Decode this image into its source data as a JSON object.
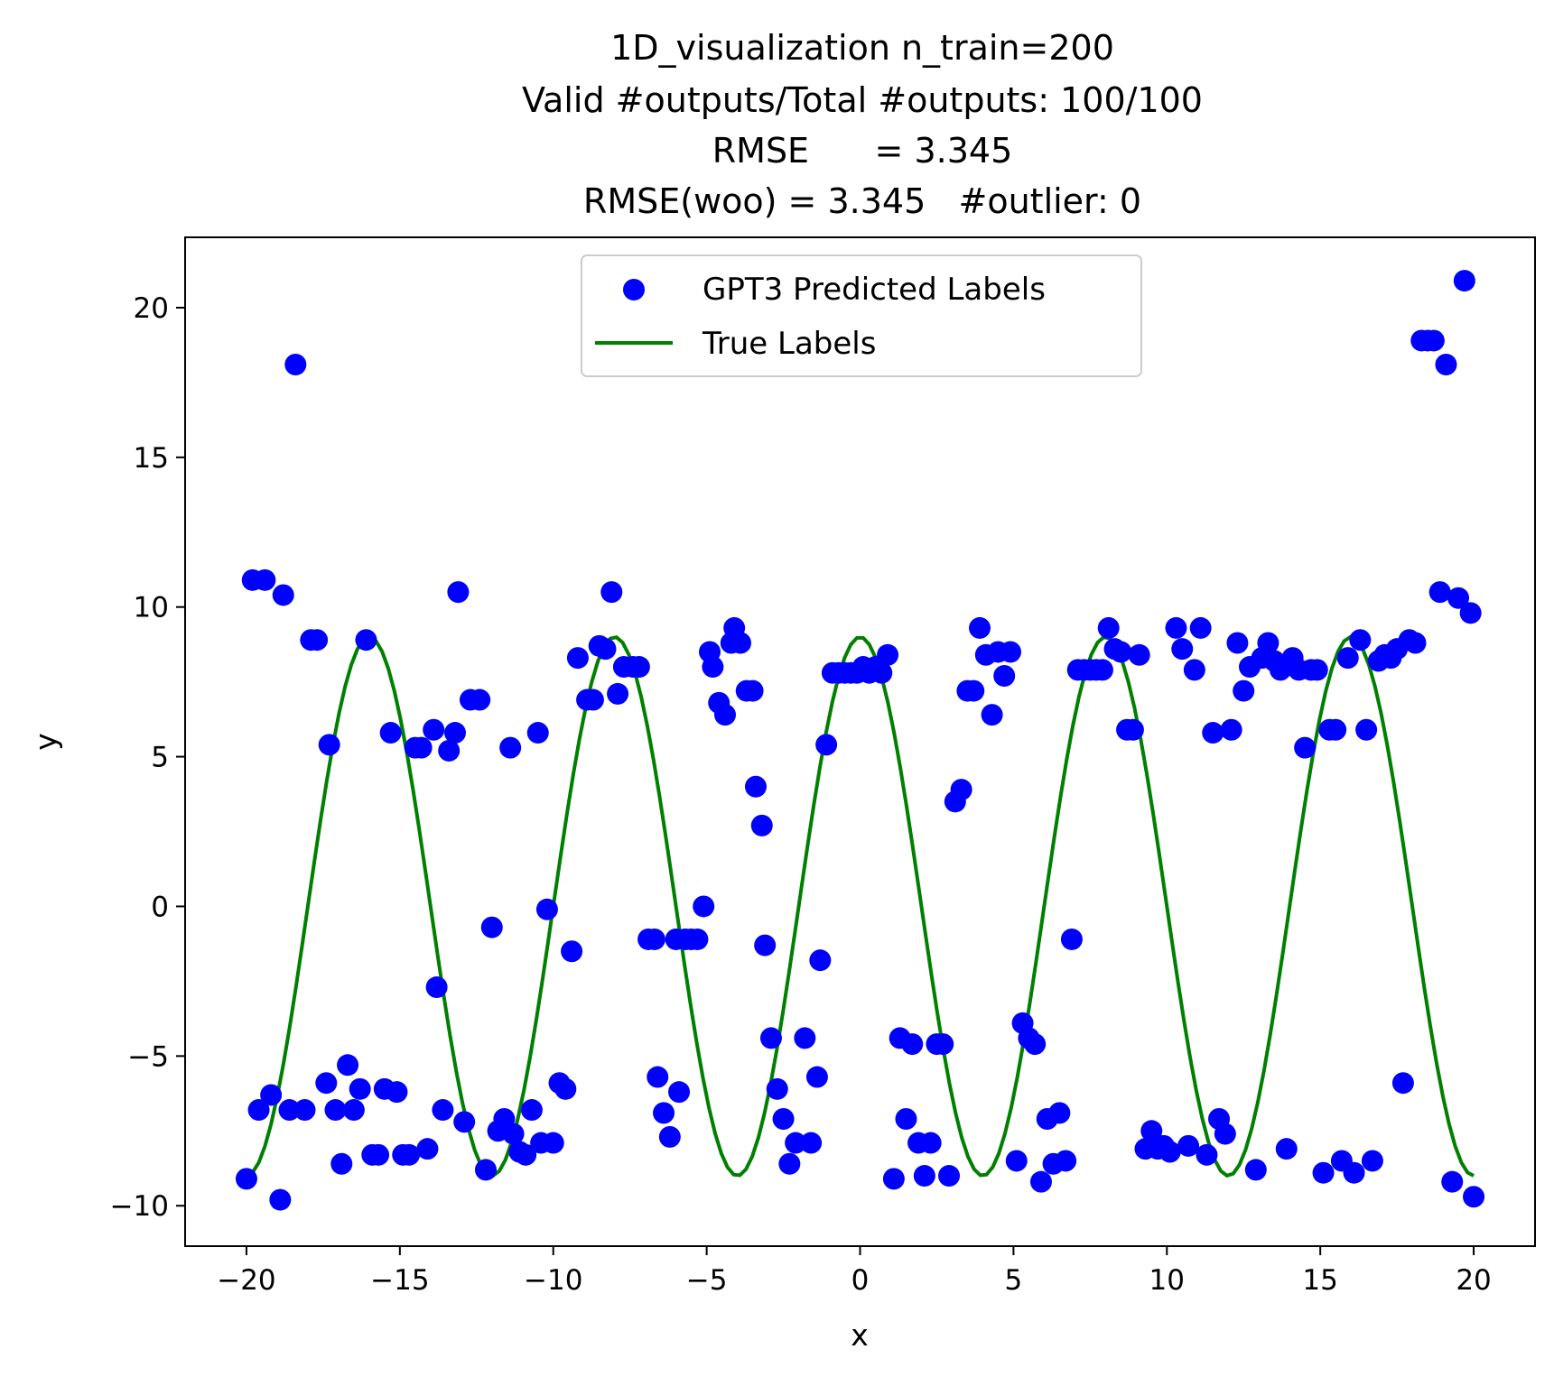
{
  "chart_data": {
    "type": "scatter",
    "title_lines": [
      "1D_visualization  n_train=200",
      "Valid #outputs/Total #outputs: 100/100",
      "RMSE      = 3.345",
      "RMSE(woo) = 3.345   #outlier: 0"
    ],
    "xlabel": "x",
    "ylabel": "y",
    "xlim": [
      -22,
      22
    ],
    "ylim": [
      -11.35,
      22.35
    ],
    "x_ticks": [
      -20,
      -15,
      -10,
      -5,
      0,
      5,
      10,
      15,
      20
    ],
    "x_tick_labels": [
      "−20",
      "−15",
      "−10",
      "−5",
      "0",
      "5",
      "10",
      "15",
      "20"
    ],
    "y_ticks": [
      -10,
      -5,
      0,
      5,
      10,
      15,
      20
    ],
    "y_tick_labels": [
      "−10",
      "−5",
      "0",
      "5",
      "10",
      "15",
      "20"
    ],
    "grid": false,
    "legend_position": "upper center",
    "series": [
      {
        "name": "GPT3 Predicted Labels",
        "kind": "scatter",
        "color": "#0000ff",
        "points": [
          [
            -20.0,
            -9.1
          ],
          [
            -19.8,
            10.9
          ],
          [
            -19.6,
            -6.8
          ],
          [
            -19.4,
            10.9
          ],
          [
            -19.2,
            -6.3
          ],
          [
            -18.9,
            -9.8
          ],
          [
            -18.8,
            10.4
          ],
          [
            -18.6,
            -6.8
          ],
          [
            -18.4,
            18.1
          ],
          [
            -18.1,
            -6.8
          ],
          [
            -17.9,
            8.9
          ],
          [
            -17.7,
            8.9
          ],
          [
            -17.4,
            -5.9
          ],
          [
            -17.3,
            5.4
          ],
          [
            -17.1,
            -6.8
          ],
          [
            -16.9,
            -8.6
          ],
          [
            -16.7,
            -5.3
          ],
          [
            -16.5,
            -6.8
          ],
          [
            -16.3,
            -6.1
          ],
          [
            -16.1,
            8.9
          ],
          [
            -15.9,
            -8.3
          ],
          [
            -15.7,
            -8.3
          ],
          [
            -15.5,
            -6.1
          ],
          [
            -15.3,
            5.8
          ],
          [
            -15.1,
            -6.2
          ],
          [
            -14.9,
            -8.3
          ],
          [
            -14.7,
            -8.3
          ],
          [
            -14.5,
            5.3
          ],
          [
            -14.3,
            5.3
          ],
          [
            -14.1,
            -8.1
          ],
          [
            -13.9,
            5.9
          ],
          [
            -13.8,
            -2.7
          ],
          [
            -13.6,
            -6.8
          ],
          [
            -13.4,
            5.2
          ],
          [
            -13.2,
            5.8
          ],
          [
            -13.1,
            10.5
          ],
          [
            -12.9,
            -7.2
          ],
          [
            -12.7,
            6.9
          ],
          [
            -12.4,
            6.9
          ],
          [
            -12.2,
            -8.8
          ],
          [
            -12.0,
            -0.7
          ],
          [
            -11.8,
            -7.5
          ],
          [
            -11.6,
            -7.1
          ],
          [
            -11.4,
            5.3
          ],
          [
            -11.3,
            -7.6
          ],
          [
            -11.1,
            -8.2
          ],
          [
            -10.9,
            -8.3
          ],
          [
            -10.7,
            -6.8
          ],
          [
            -10.5,
            5.8
          ],
          [
            -10.4,
            -7.9
          ],
          [
            -10.2,
            -0.1
          ],
          [
            -10.0,
            -7.9
          ],
          [
            -9.8,
            -5.9
          ],
          [
            -9.6,
            -6.1
          ],
          [
            -9.4,
            -1.5
          ],
          [
            -9.2,
            8.3
          ],
          [
            -8.9,
            6.9
          ],
          [
            -8.7,
            6.9
          ],
          [
            -8.5,
            8.7
          ],
          [
            -8.3,
            8.6
          ],
          [
            -8.1,
            10.5
          ],
          [
            -7.9,
            7.1
          ],
          [
            -7.7,
            8.0
          ],
          [
            -7.4,
            8.0
          ],
          [
            -7.2,
            8.0
          ],
          [
            -6.9,
            -1.1
          ],
          [
            -6.7,
            -1.1
          ],
          [
            -6.6,
            -5.7
          ],
          [
            -6.4,
            -6.9
          ],
          [
            -6.2,
            -7.7
          ],
          [
            -6.0,
            -1.1
          ],
          [
            -5.9,
            -6.2
          ],
          [
            -5.7,
            -1.1
          ],
          [
            -5.5,
            -1.1
          ],
          [
            -5.3,
            -1.1
          ],
          [
            -5.1,
            0.0
          ],
          [
            -4.9,
            8.5
          ],
          [
            -4.8,
            8.0
          ],
          [
            -4.6,
            6.8
          ],
          [
            -4.4,
            6.4
          ],
          [
            -4.2,
            8.8
          ],
          [
            -4.1,
            9.3
          ],
          [
            -3.9,
            8.8
          ],
          [
            -3.7,
            7.2
          ],
          [
            -3.5,
            7.2
          ],
          [
            -3.4,
            4.0
          ],
          [
            -3.2,
            2.7
          ],
          [
            -3.1,
            -1.3
          ],
          [
            -2.9,
            -4.4
          ],
          [
            -2.7,
            -6.1
          ],
          [
            -2.5,
            -7.1
          ],
          [
            -2.3,
            -8.6
          ],
          [
            -2.1,
            -7.9
          ],
          [
            -1.8,
            -4.4
          ],
          [
            -1.6,
            -7.9
          ],
          [
            -1.4,
            -5.7
          ],
          [
            -1.3,
            -1.8
          ],
          [
            -1.1,
            5.4
          ],
          [
            -0.9,
            7.8
          ],
          [
            -0.7,
            7.8
          ],
          [
            -0.5,
            7.8
          ],
          [
            -0.3,
            7.8
          ],
          [
            -0.1,
            7.8
          ],
          [
            0.1,
            8.0
          ],
          [
            0.3,
            7.8
          ],
          [
            0.5,
            8.0
          ],
          [
            0.7,
            7.8
          ],
          [
            0.9,
            8.4
          ],
          [
            1.1,
            -9.1
          ],
          [
            1.3,
            -4.4
          ],
          [
            1.5,
            -7.1
          ],
          [
            1.7,
            -4.6
          ],
          [
            1.9,
            -7.9
          ],
          [
            2.1,
            -9.0
          ],
          [
            2.3,
            -7.9
          ],
          [
            2.5,
            -4.6
          ],
          [
            2.7,
            -4.6
          ],
          [
            2.9,
            -9.0
          ],
          [
            3.1,
            3.5
          ],
          [
            3.3,
            3.9
          ],
          [
            3.5,
            7.2
          ],
          [
            3.7,
            7.2
          ],
          [
            3.9,
            9.3
          ],
          [
            4.1,
            8.4
          ],
          [
            4.3,
            6.4
          ],
          [
            4.5,
            8.5
          ],
          [
            4.7,
            7.7
          ],
          [
            4.9,
            8.5
          ],
          [
            5.1,
            -8.5
          ],
          [
            5.3,
            -3.9
          ],
          [
            5.5,
            -4.4
          ],
          [
            5.7,
            -4.6
          ],
          [
            5.9,
            -9.2
          ],
          [
            6.1,
            -7.1
          ],
          [
            6.3,
            -8.6
          ],
          [
            6.5,
            -6.9
          ],
          [
            6.7,
            -8.5
          ],
          [
            6.9,
            -1.1
          ],
          [
            7.1,
            7.9
          ],
          [
            7.3,
            7.9
          ],
          [
            7.5,
            7.9
          ],
          [
            7.7,
            7.9
          ],
          [
            7.9,
            7.9
          ],
          [
            8.1,
            9.3
          ],
          [
            8.3,
            8.6
          ],
          [
            8.5,
            8.5
          ],
          [
            8.7,
            5.9
          ],
          [
            8.9,
            5.9
          ],
          [
            9.1,
            8.4
          ],
          [
            9.3,
            -8.1
          ],
          [
            9.5,
            -7.5
          ],
          [
            9.7,
            -8.1
          ],
          [
            9.9,
            -8.0
          ],
          [
            10.1,
            -8.2
          ],
          [
            10.3,
            9.3
          ],
          [
            10.5,
            8.6
          ],
          [
            10.7,
            -8.0
          ],
          [
            10.9,
            7.9
          ],
          [
            11.1,
            9.3
          ],
          [
            11.3,
            -8.3
          ],
          [
            11.5,
            5.8
          ],
          [
            11.7,
            -7.1
          ],
          [
            11.9,
            -7.6
          ],
          [
            12.1,
            5.9
          ],
          [
            12.3,
            8.8
          ],
          [
            12.5,
            7.2
          ],
          [
            12.7,
            8.0
          ],
          [
            12.9,
            -8.8
          ],
          [
            13.1,
            8.3
          ],
          [
            13.3,
            8.8
          ],
          [
            13.5,
            8.2
          ],
          [
            13.7,
            7.9
          ],
          [
            13.9,
            -8.1
          ],
          [
            14.1,
            8.3
          ],
          [
            14.3,
            7.9
          ],
          [
            14.5,
            5.3
          ],
          [
            14.7,
            7.9
          ],
          [
            14.9,
            7.9
          ],
          [
            15.1,
            -8.9
          ],
          [
            15.3,
            5.9
          ],
          [
            15.5,
            5.9
          ],
          [
            15.7,
            -8.5
          ],
          [
            15.9,
            8.3
          ],
          [
            16.1,
            -8.9
          ],
          [
            16.3,
            8.9
          ],
          [
            16.5,
            5.9
          ],
          [
            16.7,
            -8.5
          ],
          [
            16.9,
            8.2
          ],
          [
            17.1,
            8.4
          ],
          [
            17.3,
            8.3
          ],
          [
            17.5,
            8.6
          ],
          [
            17.7,
            -5.9
          ],
          [
            17.9,
            8.9
          ],
          [
            18.1,
            8.8
          ],
          [
            18.3,
            18.9
          ],
          [
            18.5,
            18.9
          ],
          [
            18.7,
            18.9
          ],
          [
            18.9,
            10.5
          ],
          [
            19.1,
            18.1
          ],
          [
            19.3,
            -9.2
          ],
          [
            19.5,
            10.3
          ],
          [
            19.7,
            20.9
          ],
          [
            19.9,
            9.8
          ],
          [
            20.0,
            -9.7
          ]
        ]
      },
      {
        "name": "True Labels",
        "kind": "line",
        "color": "#008000",
        "function": "9*cos(pi*x/4)",
        "x_range": [
          -20,
          20
        ],
        "samples": 200
      }
    ]
  }
}
